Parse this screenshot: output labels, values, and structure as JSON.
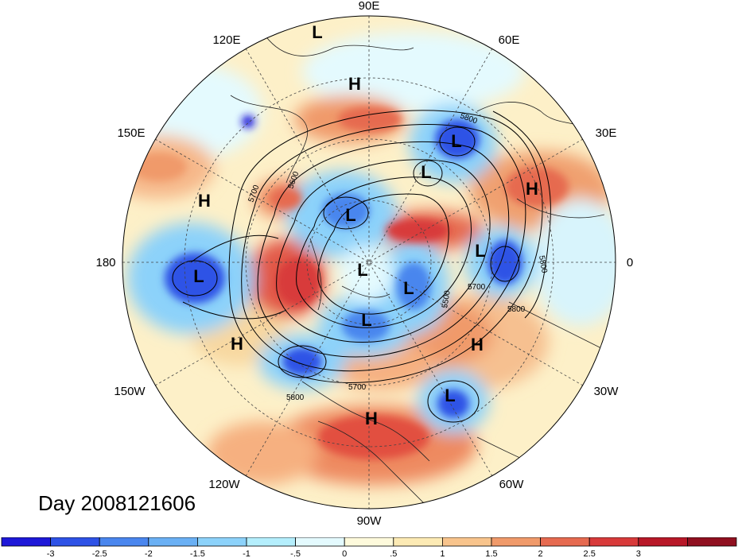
{
  "title": "Day 2008121606",
  "map": {
    "projection": "polar-stereographic-north",
    "longitude_labels": {
      "top": "90E",
      "upper_left": "120E",
      "upper_right": "60E",
      "left_upper": "150E",
      "right_upper": "30E",
      "left": "180",
      "right": "0",
      "left_lower": "150W",
      "right_lower": "30W",
      "lower_left": "120W",
      "lower_right": "60W",
      "bottom": "90W"
    },
    "pressure_centers": [
      {
        "label": "L",
        "type": "low",
        "region": "near 120E arctic coast"
      },
      {
        "label": "H",
        "type": "high",
        "region": "central Siberia"
      },
      {
        "label": "L",
        "type": "low",
        "region": "Barents/Kara Sea"
      },
      {
        "label": "L",
        "type": "low",
        "region": "east Siberia"
      },
      {
        "label": "H",
        "type": "high",
        "region": "west Pacific"
      },
      {
        "label": "H",
        "type": "high",
        "region": "Caspian / Middle East"
      },
      {
        "label": "L",
        "type": "low",
        "region": "north pole"
      },
      {
        "label": "L",
        "type": "low",
        "region": "Scandinavia / Baltic"
      },
      {
        "label": "L",
        "type": "low",
        "region": "Aleutians"
      },
      {
        "label": "L",
        "type": "low",
        "region": "Greenland"
      },
      {
        "label": "L",
        "type": "low",
        "region": "Canadian Arctic"
      },
      {
        "label": "H",
        "type": "high",
        "region": "northeast Pacific"
      },
      {
        "label": "H",
        "type": "high",
        "region": "central Atlantic"
      },
      {
        "label": "L",
        "type": "low",
        "region": "northwest North America"
      },
      {
        "label": "L",
        "type": "low",
        "region": "western Atlantic"
      },
      {
        "label": "H",
        "type": "high",
        "region": "Gulf of Mexico"
      }
    ],
    "contour_labels": [
      "5800",
      "5600",
      "5700",
      "5500",
      "5700",
      "5800",
      "5800",
      "5700",
      "5800"
    ]
  },
  "colorbar": {
    "colors": [
      "#1e18d8",
      "#2e52e6",
      "#4a86ee",
      "#6ab0f4",
      "#8cd2fa",
      "#b4eefc",
      "#e4fafe",
      "#fefadc",
      "#fceab4",
      "#f8c48c",
      "#f09a6a",
      "#e66a50",
      "#d83a3a",
      "#b81828",
      "#901020"
    ],
    "tick_labels": [
      "-3",
      "-2.5",
      "-2",
      "-1.5",
      "-1",
      "-.5",
      "0",
      ".5",
      "1",
      "1.5",
      "2",
      "2.5",
      "3"
    ]
  }
}
